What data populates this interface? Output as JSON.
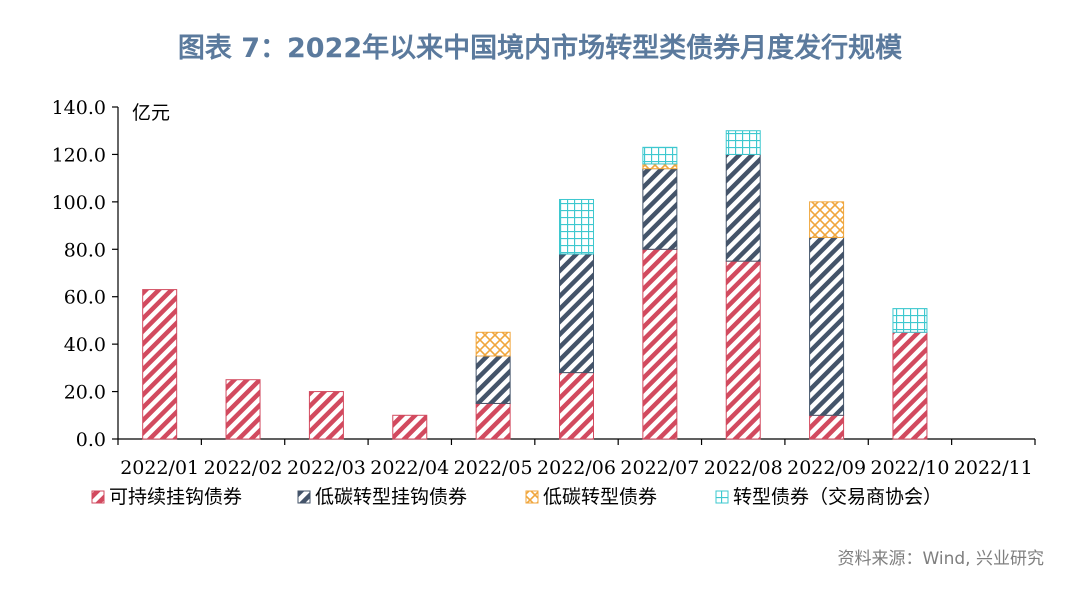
{
  "title": "图表 7：2022年以来中国境内市场转型类债券月度发行规模",
  "source": "资料来源：Wind, 兴业研究",
  "chart_data": {
    "type": "bar",
    "stacked": true,
    "title": "图表 7：2022年以来中国境内市场转型类债券月度发行规模",
    "ylabel": "亿元",
    "xlabel": "",
    "ylim": [
      0,
      140
    ],
    "yticks": [
      "0.0",
      "20.0",
      "40.0",
      "60.0",
      "80.0",
      "100.0",
      "120.0",
      "140.0"
    ],
    "categories": [
      "2022/01",
      "2022/02",
      "2022/03",
      "2022/04",
      "2022/05",
      "2022/06",
      "2022/07",
      "2022/08",
      "2022/09",
      "2022/10",
      "2022/11"
    ],
    "legend_position": "bottom",
    "grid": false,
    "series": [
      {
        "name": "可持续挂钩债券",
        "color": "#d24a5f",
        "pattern": "diagonal-lines",
        "values": [
          63,
          25,
          20,
          10,
          15,
          28,
          80,
          75,
          10,
          45,
          0
        ]
      },
      {
        "name": "低碳转型挂钩债券",
        "color": "#44546a",
        "pattern": "diagonal-lines",
        "values": [
          0,
          0,
          0,
          0,
          20,
          50,
          34,
          45,
          75,
          0,
          0
        ]
      },
      {
        "name": "低碳转型债券",
        "color": "#f0a63c",
        "pattern": "crosshatch-diagonal",
        "values": [
          0,
          0,
          0,
          0,
          10,
          0,
          2,
          0,
          15,
          0,
          0
        ]
      },
      {
        "name": "转型债券（交易商协会）",
        "color": "#3ec8cf",
        "pattern": "grid",
        "values": [
          0,
          0,
          0,
          0,
          0,
          23,
          7,
          10,
          0,
          10,
          0
        ]
      }
    ]
  }
}
